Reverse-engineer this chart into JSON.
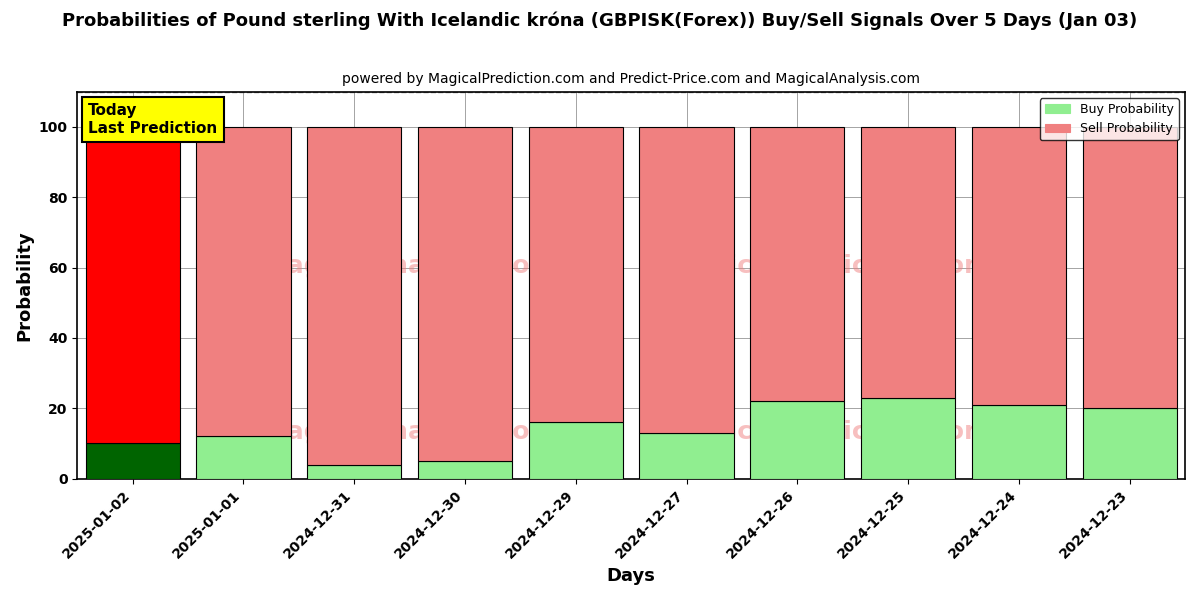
{
  "title": "Probabilities of Pound sterling With Icelandic króna (GBPISK(Forex)) Buy/Sell Signals Over 5 Days (Jan 03)",
  "subtitle": "powered by MagicalPrediction.com and Predict-Price.com and MagicalAnalysis.com",
  "xlabel": "Days",
  "ylabel": "Probability",
  "categories": [
    "2025-01-02",
    "2025-01-01",
    "2024-12-31",
    "2024-12-30",
    "2024-12-29",
    "2024-12-27",
    "2024-12-26",
    "2024-12-25",
    "2024-12-24",
    "2024-12-23"
  ],
  "buy_values": [
    10,
    12,
    4,
    5,
    16,
    13,
    22,
    23,
    21,
    20
  ],
  "sell_values": [
    90,
    88,
    96,
    95,
    84,
    87,
    78,
    77,
    79,
    80
  ],
  "today_buy_color": "#006400",
  "today_sell_color": "#ff0000",
  "buy_color": "#90ee90",
  "sell_color": "#f08080",
  "today_label_bg": "#ffff00",
  "today_label_text": "Today\nLast Prediction",
  "legend_buy": "Buy Probability",
  "legend_sell": "Sell Probability",
  "ylim": [
    0,
    110
  ],
  "yticks": [
    0,
    20,
    40,
    60,
    80,
    100
  ],
  "dashed_line_y": 110,
  "figsize": [
    12.0,
    6.0
  ],
  "dpi": 100
}
